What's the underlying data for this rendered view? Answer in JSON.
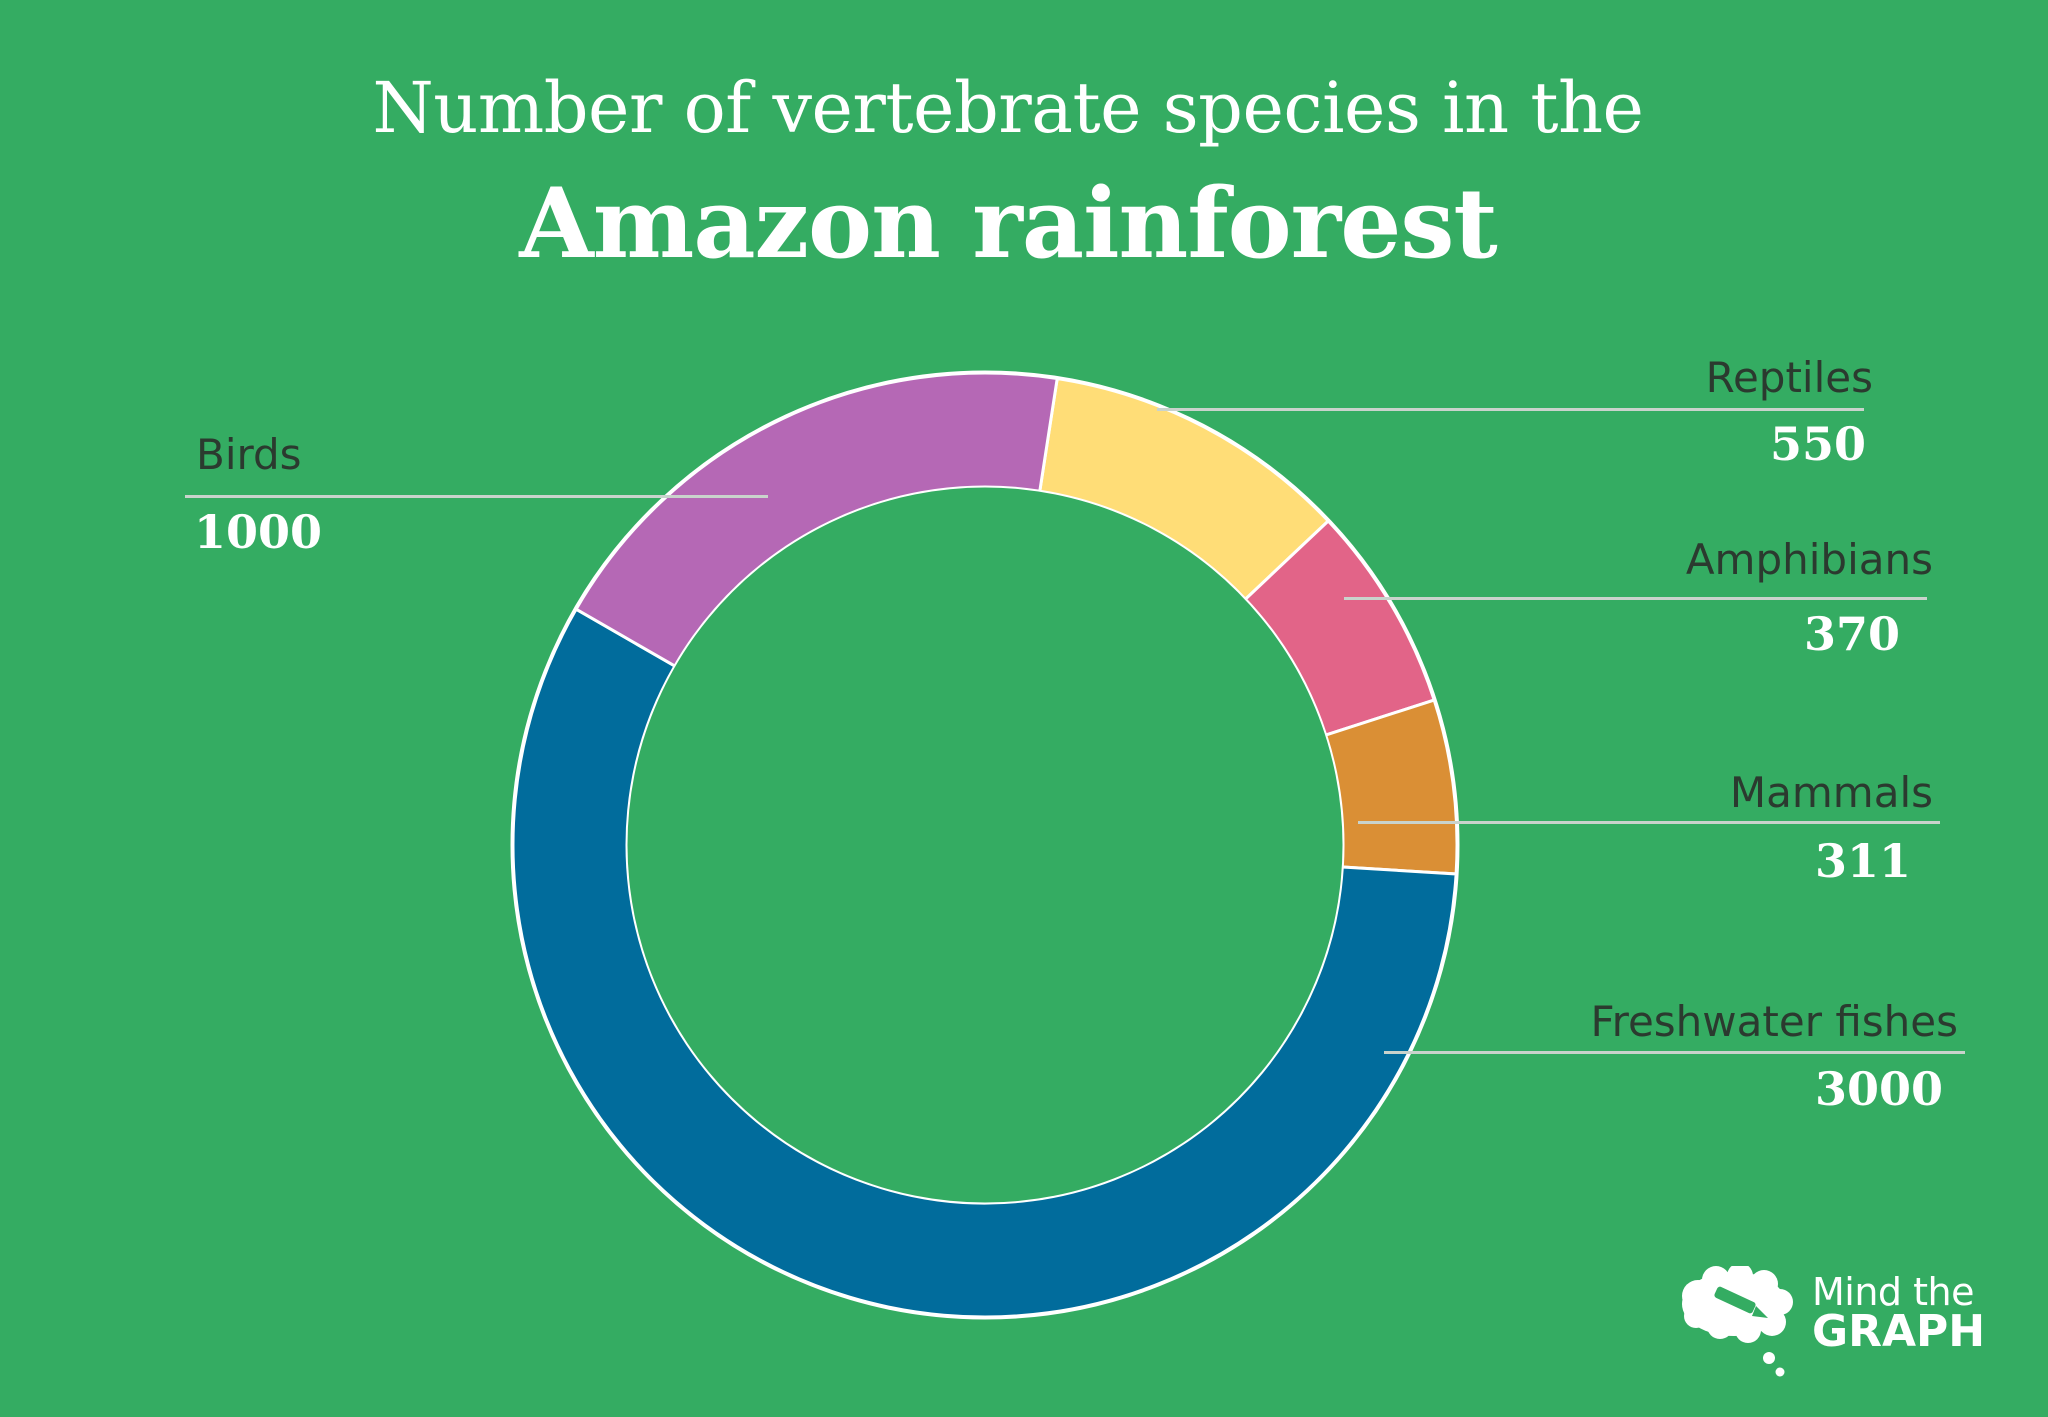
{
  "header": {
    "title_line1": "Number of vertebrate species in the",
    "title_line2": "Amazon rainforest"
  },
  "colors": {
    "background": "#34ac62",
    "birds": "#b568b5",
    "reptiles": "#ffdd77",
    "amphibians": "#e26488",
    "mammals": "#da8f35",
    "freshwater_fishes": "#016c9c",
    "leader_line": "#c9d3cc",
    "label_text": "#2b3a2f"
  },
  "labels": {
    "birds": {
      "name": "Birds",
      "value": "1000"
    },
    "reptiles": {
      "name": "Reptiles",
      "value": "550"
    },
    "amphibians": {
      "name": "Amphibians",
      "value": "370"
    },
    "mammals": {
      "name": "Mammals",
      "value": "311"
    },
    "fishes": {
      "name": "Freshwater fishes",
      "value": "3000"
    }
  },
  "logo": {
    "line1": "Mind the",
    "line2": "GRAPH"
  },
  "chart_data": {
    "type": "pie",
    "variant": "donut",
    "title": "Number of vertebrate species in the Amazon rainforest",
    "categories": [
      "Reptiles",
      "Amphibians",
      "Mammals",
      "Freshwater fishes",
      "Birds"
    ],
    "values": [
      550,
      370,
      311,
      3000,
      1000
    ],
    "colors": [
      "#ffdd77",
      "#e26488",
      "#da8f35",
      "#016c9c",
      "#b568b5"
    ],
    "start_angle_deg": 8.8,
    "direction": "clockwise",
    "legend": "none",
    "data_labels": "outside with leader lines"
  }
}
